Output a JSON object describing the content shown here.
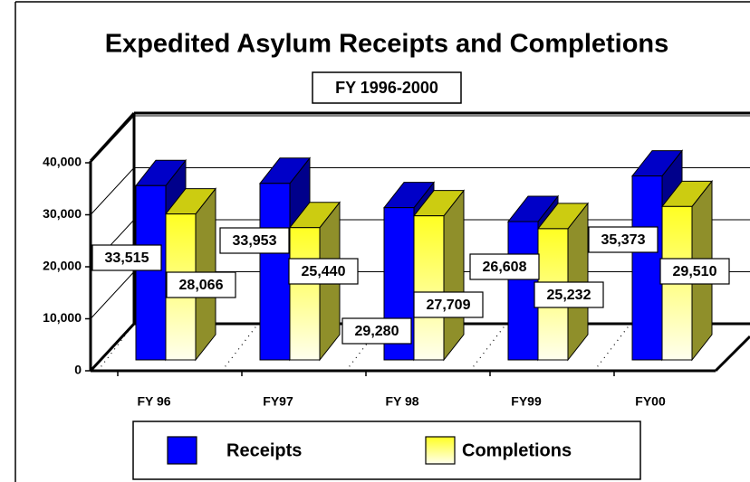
{
  "chart_data": {
    "type": "bar3d",
    "title": "Expedited Asylum Receipts and Completions",
    "subtitle": "FY 1996-2000",
    "categories": [
      "FY 96",
      "FY97",
      "FY 98",
      "FY99",
      "FY00"
    ],
    "series": [
      {
        "name": "Receipts",
        "color": "#0000ff",
        "values": [
          33515,
          33953,
          29280,
          26608,
          35373
        ],
        "value_labels": [
          "33,515",
          "33,953",
          "29,280",
          "26,608",
          "35,373"
        ]
      },
      {
        "name": "Completions",
        "color": "#ffff33",
        "values": [
          28066,
          25440,
          27709,
          25232,
          29510
        ],
        "value_labels": [
          "28,066",
          "25,440",
          "27,709",
          "25,232",
          "29,510"
        ]
      }
    ],
    "ylim": [
      0,
      40000
    ],
    "yticks": [
      0,
      {
        "value": 10000,
        "label": "10,000"
      },
      {
        "value": 20000,
        "label": "20,000"
      },
      {
        "value": 30000,
        "label": "30,000"
      },
      {
        "value": 40000,
        "label": "40,000"
      }
    ],
    "grid": true,
    "legend": "bottom"
  }
}
